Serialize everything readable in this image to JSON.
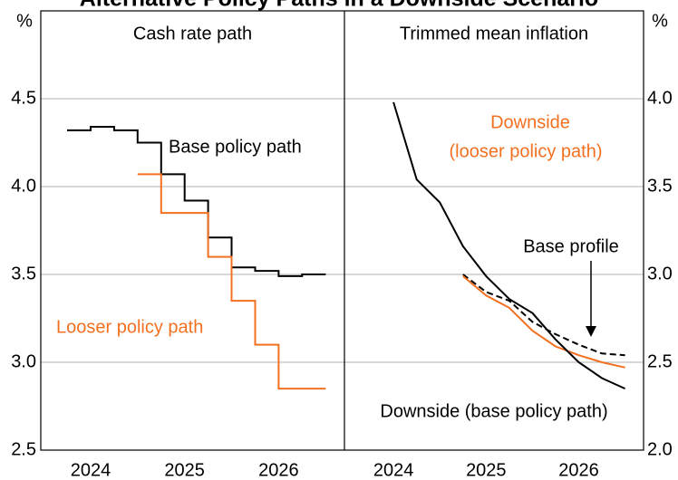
{
  "title": "Alternative Policy Paths in a Downside Scenario",
  "chart_data": [
    {
      "type": "line",
      "step": true,
      "title": "Cash rate path",
      "y_unit": "%",
      "axis_side": "left",
      "xlim": [
        2023.97,
        2027.2
      ],
      "ylim": [
        2.5,
        5.0
      ],
      "yticks": [
        2.5,
        {
          "value": 3,
          "label": "3.0"
        },
        3.5,
        {
          "value": 4,
          "label": "4.0"
        },
        4.5
      ],
      "xticks": [
        {
          "value": 2024.5,
          "label": "2024"
        },
        {
          "value": 2025.5,
          "label": "2025"
        },
        {
          "value": 2026.5,
          "label": "2026"
        }
      ],
      "grid": true,
      "series": [
        {
          "name": "Base policy path",
          "color": "#000000",
          "x": [
            2024.25,
            2024.5,
            2024.75,
            2025.0,
            2025.25,
            2025.5,
            2025.75,
            2026.0,
            2026.25,
            2026.5,
            2026.75,
            2027.0
          ],
          "values": [
            4.32,
            4.34,
            4.32,
            4.25,
            4.07,
            3.92,
            3.71,
            3.54,
            3.52,
            3.49,
            3.5,
            3.5
          ]
        },
        {
          "name": "Looser policy path",
          "color": "#f37021",
          "x": [
            2025.0,
            2025.25,
            2025.75,
            2026.0,
            2026.25,
            2026.5,
            2027.0
          ],
          "values": [
            4.07,
            3.85,
            3.6,
            3.35,
            3.1,
            2.85,
            2.85
          ]
        }
      ]
    },
    {
      "type": "line",
      "step": false,
      "title": "Trimmed mean inflation",
      "y_unit": "%",
      "axis_side": "right",
      "xlim": [
        2023.97,
        2027.2
      ],
      "ylim": [
        2.0,
        4.5
      ],
      "yticks": [
        {
          "value": 2,
          "label": "2.0"
        },
        2.5,
        {
          "value": 3,
          "label": "3.0"
        },
        3.5,
        {
          "value": 4,
          "label": "4.0"
        }
      ],
      "xticks": [
        {
          "value": 2024.5,
          "label": "2024"
        },
        {
          "value": 2025.5,
          "label": "2025"
        },
        {
          "value": 2026.5,
          "label": "2026"
        }
      ],
      "grid": true,
      "series": [
        {
          "name": "Base profile",
          "color": "#000000",
          "dashed": true,
          "x": [
            2025.25,
            2025.5,
            2025.75,
            2026.0,
            2026.25,
            2026.5,
            2026.75,
            2027.0
          ],
          "values": [
            3.0,
            2.9,
            2.85,
            2.73,
            2.66,
            2.6,
            2.55,
            2.54
          ]
        },
        {
          "name": "Downside (looser policy path)",
          "color": "#f37021",
          "dashed": false,
          "x": [
            2025.25,
            2025.5,
            2025.75,
            2026.0,
            2026.25,
            2026.5,
            2026.75,
            2027.0
          ],
          "values": [
            2.99,
            2.88,
            2.81,
            2.68,
            2.59,
            2.54,
            2.5,
            2.47
          ]
        },
        {
          "name": "Downside (base policy path)",
          "color": "#000000",
          "dashed": false,
          "x": [
            2024.5,
            2024.75,
            2025.0,
            2025.25,
            2025.5,
            2025.75,
            2026.0,
            2026.25,
            2026.5,
            2026.75,
            2027.0
          ],
          "values": [
            3.98,
            3.54,
            3.41,
            3.16,
            2.99,
            2.86,
            2.78,
            2.63,
            2.5,
            2.41,
            2.35
          ]
        }
      ],
      "annotations": [
        "Downside",
        "(looser policy path)"
      ]
    }
  ]
}
